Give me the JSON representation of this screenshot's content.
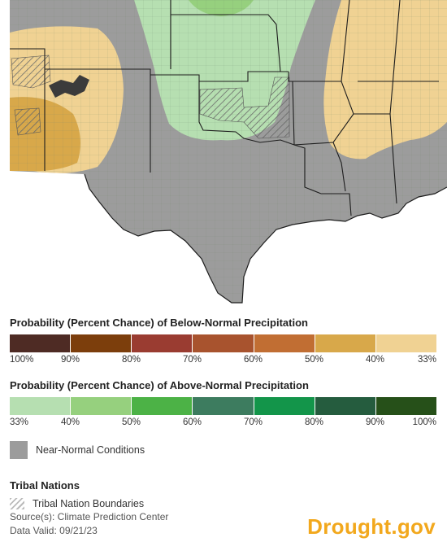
{
  "below_legend": {
    "title": "Probability (Percent Chance) of Below-Normal Precipitation",
    "colors": [
      "#4e2b24",
      "#7c3e0c",
      "#9a3c31",
      "#a8532e",
      "#c16e33",
      "#d8a84a",
      "#f0d293"
    ],
    "ticks": [
      "100%",
      "90%",
      "80%",
      "70%",
      "60%",
      "50%",
      "40%",
      "33%"
    ]
  },
  "above_legend": {
    "title": "Probability (Percent Chance) of Above-Normal Precipitation",
    "colors": [
      "#b6dfb1",
      "#96d07e",
      "#4cb246",
      "#3d7c5f",
      "#13954a",
      "#255c3e",
      "#265019"
    ],
    "ticks": [
      "33%",
      "40%",
      "50%",
      "60%",
      "70%",
      "80%",
      "90%",
      "100%"
    ]
  },
  "near_normal": {
    "label": "Near-Normal Conditions",
    "color": "#9c9c9c"
  },
  "tribal": {
    "title": "Tribal Nations",
    "label": "Tribal Nation Boundaries"
  },
  "source": "Source(s): Climate Prediction Center",
  "valid": "Data Valid: 09/21/23",
  "brand": "Drought.gov",
  "map_colors": {
    "near_normal": "#9c9c9c",
    "above_33_40": "#b6dfb1",
    "above_40_50": "#96d07e",
    "below_33_40": "#f0d293",
    "below_40_50": "#d8a84a",
    "background": "#ffffff",
    "county_lines": "#7f8f7a"
  }
}
